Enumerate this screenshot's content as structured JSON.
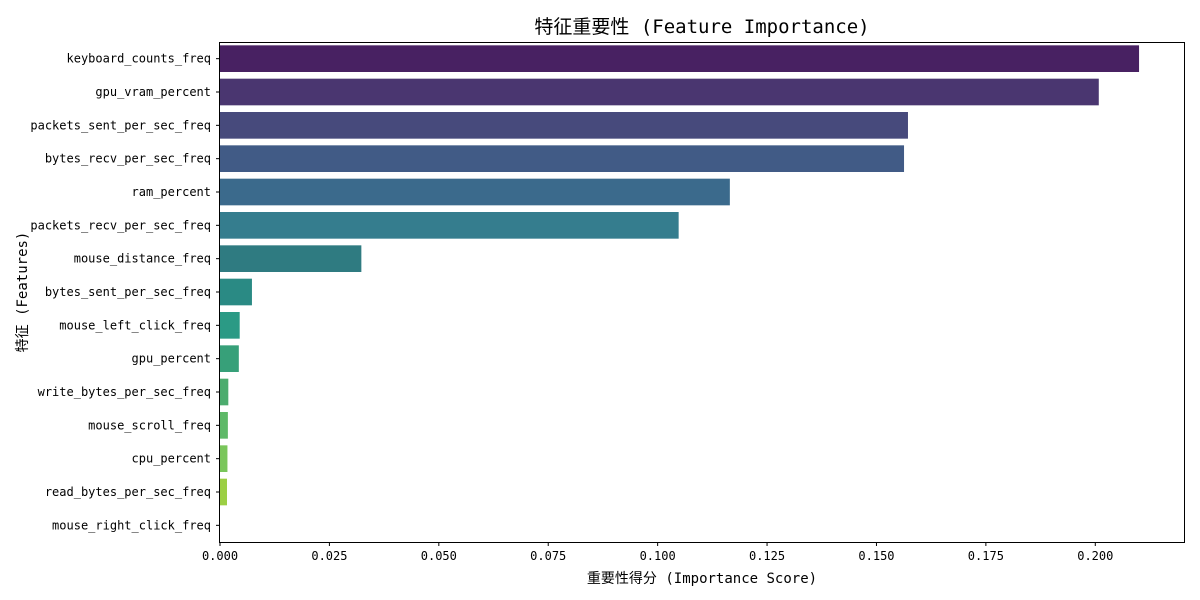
{
  "chart_data": {
    "type": "bar",
    "orientation": "horizontal",
    "title": "特征重要性 (Feature Importance)",
    "xlabel": "重要性得分 (Importance Score)",
    "ylabel": "特征 (Features)",
    "xlim": [
      0,
      0.2205
    ],
    "x_ticks": [
      "0.000",
      "0.025",
      "0.050",
      "0.075",
      "0.100",
      "0.125",
      "0.150",
      "0.175",
      "0.200"
    ],
    "grid": false,
    "legend": "none",
    "palette": "viridis",
    "categories": [
      "keyboard_counts_freq",
      "gpu_vram_percent",
      "packets_sent_per_sec_freq",
      "bytes_recv_per_sec_freq",
      "ram_percent",
      "packets_recv_per_sec_freq",
      "mouse_distance_freq",
      "bytes_sent_per_sec_freq",
      "mouse_left_click_freq",
      "gpu_percent",
      "write_bytes_per_sec_freq",
      "mouse_scroll_freq",
      "cpu_percent",
      "read_bytes_per_sec_freq",
      "mouse_right_click_freq"
    ],
    "values": [
      0.21,
      0.2008,
      0.1572,
      0.1563,
      0.1165,
      0.1048,
      0.0323,
      0.0073,
      0.0045,
      0.0043,
      0.0019,
      0.0018,
      0.0017,
      0.0016,
      0.0
    ],
    "colors": [
      "#482162",
      "#4a3670",
      "#474a7c",
      "#415b86",
      "#3b6a8c",
      "#357d8e",
      "#2f7b81",
      "#2a8a84",
      "#2b9a85",
      "#37a079",
      "#4cac6e",
      "#5eb968",
      "#7ac65b",
      "#9ccf44",
      "#b9d739"
    ]
  }
}
